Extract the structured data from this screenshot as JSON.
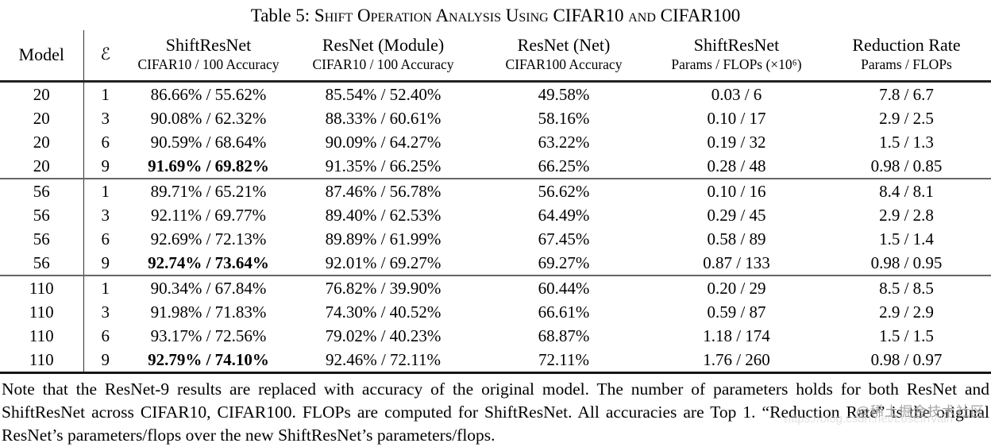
{
  "title": {
    "prefix": "Table 5: ",
    "text": "Shift Operation Analysis Using CIFAR10 and CIFAR100"
  },
  "columns": [
    {
      "label": "Model",
      "sublabel": ""
    },
    {
      "label": "ℰ",
      "sublabel": ""
    },
    {
      "label": "ShiftResNet",
      "sublabel": "CIFAR10 / 100 Accuracy"
    },
    {
      "label": "ResNet (Module)",
      "sublabel": "CIFAR10 / 100 Accuracy"
    },
    {
      "label": "ResNet (Net)",
      "sublabel": "CIFAR100 Accuracy"
    },
    {
      "label": "ShiftResNet",
      "sublabel": "Params / FLOPs (×10⁶)"
    },
    {
      "label": "Reduction Rate",
      "sublabel": "Params / FLOPs"
    }
  ],
  "rows": [
    {
      "model": "20",
      "e": "1",
      "shift": "86.66% / 55.62%",
      "module": "85.54% / 52.40%",
      "net": "49.58%",
      "params": "0.03 / 6",
      "reduction": "7.8 / 6.7"
    },
    {
      "model": "20",
      "e": "3",
      "shift": "90.08% / 62.32%",
      "module": "88.33% / 60.61%",
      "net": "58.16%",
      "params": "0.10 / 17",
      "reduction": "2.9 / 2.5"
    },
    {
      "model": "20",
      "e": "6",
      "shift": "90.59% / 68.64%",
      "module": "90.09% / 64.27%",
      "net": "63.22%",
      "params": "0.19 / 32",
      "reduction": "1.5 / 1.3"
    },
    {
      "model": "20",
      "e": "9",
      "shift": "91.69% / 69.82%",
      "module": "91.35% / 66.25%",
      "net": "66.25%",
      "params": "0.28 / 48",
      "reduction": "0.98 / 0.85"
    },
    {
      "model": "56",
      "e": "1",
      "shift": "89.71% / 65.21%",
      "module": "87.46% / 56.78%",
      "net": "56.62%",
      "params": "0.10 / 16",
      "reduction": "8.4 / 8.1"
    },
    {
      "model": "56",
      "e": "3",
      "shift": "92.11% / 69.77%",
      "module": "89.40% / 62.53%",
      "net": "64.49%",
      "params": "0.29 / 45",
      "reduction": "2.9 / 2.8"
    },
    {
      "model": "56",
      "e": "6",
      "shift": "92.69% / 72.13%",
      "module": "89.89% / 61.99%",
      "net": "67.45%",
      "params": "0.58 / 89",
      "reduction": "1.5 / 1.4"
    },
    {
      "model": "56",
      "e": "9",
      "shift": "92.74% / 73.64%",
      "module": "92.01% / 69.27%",
      "net": "69.27%",
      "params": "0.87 / 133",
      "reduction": "0.98 / 0.95"
    },
    {
      "model": "110",
      "e": "1",
      "shift": "90.34% / 67.84%",
      "module": "76.82% / 39.90%",
      "net": "60.44%",
      "params": "0.20 / 29",
      "reduction": "8.5 / 8.5"
    },
    {
      "model": "110",
      "e": "3",
      "shift": "91.98% / 71.83%",
      "module": "74.30% / 40.52%",
      "net": "66.61%",
      "params": "0.59 / 87",
      "reduction": "2.9 / 2.9"
    },
    {
      "model": "110",
      "e": "6",
      "shift": "93.17% / 72.56%",
      "module": "79.02% / 40.23%",
      "net": "68.87%",
      "params": "1.18 / 174",
      "reduction": "1.5 / 1.5"
    },
    {
      "model": "110",
      "e": "9",
      "shift": "92.79% / 74.10%",
      "module": "92.46% / 72.11%",
      "net": "72.11%",
      "params": "1.76 / 260",
      "reduction": "0.98 / 0.97"
    }
  ],
  "note": "Note that the ResNet-9 results are replaced with accuracy of the original model.  The number of parameters holds for both ResNet and ShiftResNet across CIFAR10, CIFAR100.  FLOPs are computed for ShiftResNet.  All accuracies are Top 1. “Reduction Rate” is the original ResNet’s parameters/flops over the new ShiftResNet’s parameters/flops.",
  "watermark": {
    "handle": "@稀土掘金技术社区",
    "url": "https://blog.csdn.net/LoseInVain"
  }
}
